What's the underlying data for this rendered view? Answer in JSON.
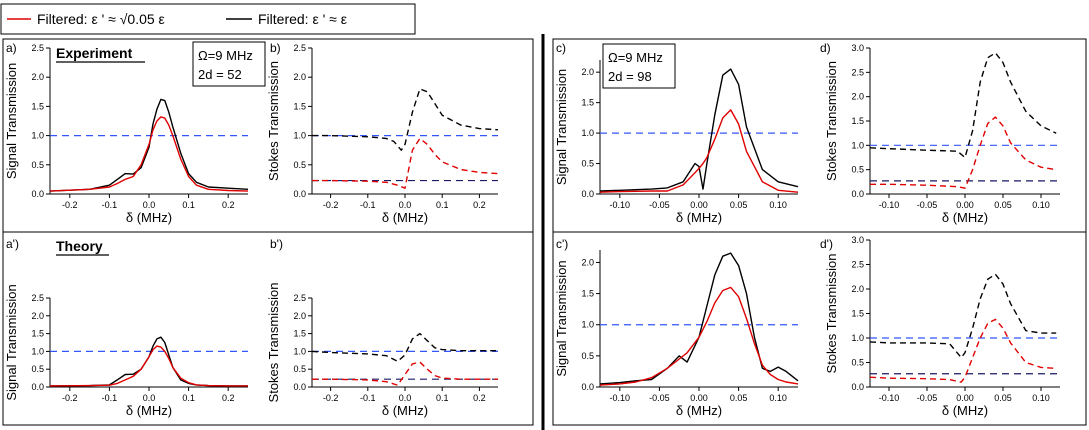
{
  "legend": {
    "items": [
      {
        "label": "Filtered: ε ' ≈ √0.05 ε",
        "color": "#e00000"
      },
      {
        "label": "Filtered: ε ' ≈ ε",
        "color": "#000000"
      }
    ]
  },
  "row_labels": {
    "experiment": "Experiment",
    "theory": "Theory"
  },
  "params": {
    "left": {
      "omega": "Ω=9 MHz",
      "two_d": "2d = 52"
    },
    "right": {
      "omega": "Ω=9 MHz",
      "two_d": "2d = 98"
    }
  },
  "colors": {
    "red": "#e00000",
    "black": "#000000",
    "blue_ref": "#3355ff",
    "navy_ref": "#1a1a66"
  },
  "chart_data": [
    {
      "id": "a",
      "panel_label": "a)",
      "type": "line",
      "xlabel": "δ (MHz)",
      "ylabel": "Signal Transmission",
      "xlim": [
        -0.25,
        0.25
      ],
      "ylim": [
        0,
        2.5
      ],
      "xticks": [
        -0.2,
        -0.1,
        0.0,
        0.1,
        0.2
      ],
      "xticklabels": [
        "-0.2",
        "-0.1",
        "0.0",
        "0.1",
        "0.2"
      ],
      "yticks": [
        0,
        0.5,
        1.0,
        1.5,
        2.0,
        2.5
      ],
      "yticklabels": [
        "0.0",
        "0.5",
        "1.0",
        "1.5",
        "2.0",
        "2.5"
      ],
      "reference_lines": [
        {
          "y": 1.0,
          "color": "blue"
        }
      ],
      "series": [
        {
          "color": "black",
          "style": "solid",
          "x": [
            -0.25,
            -0.15,
            -0.1,
            -0.08,
            -0.06,
            -0.04,
            -0.02,
            0.0,
            0.01,
            0.02,
            0.03,
            0.04,
            0.05,
            0.06,
            0.08,
            0.1,
            0.12,
            0.15,
            0.2,
            0.25
          ],
          "y": [
            0.05,
            0.08,
            0.15,
            0.25,
            0.35,
            0.34,
            0.45,
            0.8,
            1.2,
            1.45,
            1.62,
            1.6,
            1.4,
            1.15,
            0.7,
            0.35,
            0.2,
            0.12,
            0.1,
            0.08
          ]
        },
        {
          "color": "red",
          "style": "solid",
          "x": [
            -0.25,
            -0.15,
            -0.1,
            -0.08,
            -0.06,
            -0.04,
            -0.02,
            0.0,
            0.01,
            0.02,
            0.03,
            0.04,
            0.05,
            0.06,
            0.08,
            0.1,
            0.12,
            0.15,
            0.2,
            0.25
          ],
          "y": [
            0.05,
            0.08,
            0.12,
            0.18,
            0.25,
            0.3,
            0.5,
            0.85,
            1.1,
            1.25,
            1.32,
            1.3,
            1.18,
            1.0,
            0.6,
            0.3,
            0.15,
            0.08,
            0.06,
            0.05
          ]
        }
      ]
    },
    {
      "id": "b",
      "panel_label": "b)",
      "type": "line",
      "xlabel": "δ (MHz)",
      "ylabel": "Stokes Transmission",
      "xlim": [
        -0.25,
        0.25
      ],
      "ylim": [
        0,
        2.5
      ],
      "xticks": [
        -0.2,
        -0.1,
        0.0,
        0.1,
        0.2
      ],
      "xticklabels": [
        "-0.2",
        "-0.1",
        "0.0",
        "0.1",
        "0.2"
      ],
      "yticks": [
        0,
        0.5,
        1.0,
        1.5,
        2.0,
        2.5
      ],
      "yticklabels": [
        "0.0",
        "0.5",
        "1.0",
        "1.5",
        "2.0",
        "2.5"
      ],
      "reference_lines": [
        {
          "y": 1.0,
          "color": "blue"
        },
        {
          "y": 0.23,
          "color": "navy"
        }
      ],
      "series": [
        {
          "color": "black",
          "style": "dashed",
          "x": [
            -0.25,
            -0.2,
            -0.1,
            -0.05,
            -0.03,
            -0.01,
            0.0,
            0.02,
            0.04,
            0.06,
            0.08,
            0.1,
            0.15,
            0.2,
            0.25
          ],
          "y": [
            1.0,
            1.0,
            0.98,
            0.95,
            0.9,
            0.75,
            0.85,
            1.4,
            1.8,
            1.75,
            1.55,
            1.35,
            1.18,
            1.12,
            1.1
          ]
        },
        {
          "color": "red",
          "style": "dashed",
          "x": [
            -0.25,
            -0.2,
            -0.1,
            -0.05,
            -0.02,
            0.0,
            0.02,
            0.04,
            0.06,
            0.08,
            0.1,
            0.15,
            0.2,
            0.25
          ],
          "y": [
            0.23,
            0.23,
            0.22,
            0.2,
            0.15,
            0.1,
            0.75,
            0.95,
            0.85,
            0.68,
            0.55,
            0.42,
            0.37,
            0.35
          ]
        }
      ]
    },
    {
      "id": "a2",
      "panel_label": "a')",
      "type": "line",
      "xlabel": "δ (MHz)",
      "ylabel": "Signal Transmission",
      "xlim": [
        -0.25,
        0.25
      ],
      "ylim": [
        0,
        2.5
      ],
      "xticks": [
        -0.2,
        -0.1,
        0.0,
        0.1,
        0.2
      ],
      "xticklabels": [
        "-0.2",
        "-0.1",
        "0.0",
        "0.1",
        "0.2"
      ],
      "yticks": [
        0,
        0.5,
        1.0,
        1.5,
        2.0,
        2.5
      ],
      "yticklabels": [
        "0.0",
        "0.5",
        "1.0",
        "1.5",
        "2.0",
        "2.5"
      ],
      "reference_lines": [
        {
          "y": 1.0,
          "color": "blue"
        }
      ],
      "series": [
        {
          "color": "black",
          "style": "solid",
          "x": [
            -0.25,
            -0.15,
            -0.1,
            -0.08,
            -0.06,
            -0.04,
            -0.02,
            0.0,
            0.01,
            0.02,
            0.03,
            0.04,
            0.05,
            0.06,
            0.08,
            0.1,
            0.12,
            0.15,
            0.2,
            0.25
          ],
          "y": [
            0.03,
            0.04,
            0.06,
            0.2,
            0.35,
            0.36,
            0.5,
            0.85,
            1.15,
            1.35,
            1.4,
            1.25,
            0.9,
            0.55,
            0.2,
            0.1,
            0.06,
            0.04,
            0.03,
            0.03
          ]
        },
        {
          "color": "red",
          "style": "solid",
          "x": [
            -0.25,
            -0.15,
            -0.1,
            -0.08,
            -0.06,
            -0.04,
            -0.02,
            0.0,
            0.01,
            0.02,
            0.03,
            0.04,
            0.05,
            0.06,
            0.08,
            0.1,
            0.12,
            0.15,
            0.2,
            0.25
          ],
          "y": [
            0.03,
            0.04,
            0.05,
            0.1,
            0.2,
            0.3,
            0.5,
            0.85,
            1.05,
            1.15,
            1.12,
            1.0,
            0.8,
            0.55,
            0.25,
            0.12,
            0.06,
            0.04,
            0.03,
            0.03
          ]
        }
      ]
    },
    {
      "id": "b2",
      "panel_label": "b')",
      "type": "line",
      "xlabel": "δ (MHz)",
      "ylabel": "Stokes Transmission",
      "xlim": [
        -0.25,
        0.25
      ],
      "ylim": [
        0,
        2.5
      ],
      "xticks": [
        -0.2,
        -0.1,
        0.0,
        0.1,
        0.2
      ],
      "xticklabels": [
        "-0.2",
        "-0.1",
        "0.0",
        "0.1",
        "0.2"
      ],
      "yticks": [
        0,
        0.5,
        1.0,
        1.5,
        2.0,
        2.5
      ],
      "yticklabels": [
        "0.0",
        "0.5",
        "1.0",
        "1.5",
        "2.0",
        "2.5"
      ],
      "reference_lines": [
        {
          "y": 1.0,
          "color": "blue"
        },
        {
          "y": 0.22,
          "color": "navy"
        }
      ],
      "series": [
        {
          "color": "black",
          "style": "dashed",
          "x": [
            -0.25,
            -0.2,
            -0.1,
            -0.05,
            -0.02,
            0.0,
            0.02,
            0.04,
            0.06,
            0.08,
            0.1,
            0.15,
            0.2,
            0.25
          ],
          "y": [
            1.0,
            0.97,
            0.93,
            0.88,
            0.72,
            0.9,
            1.35,
            1.5,
            1.3,
            1.1,
            1.05,
            1.02,
            1.02,
            1.02
          ]
        },
        {
          "color": "red",
          "style": "dashed",
          "x": [
            -0.25,
            -0.2,
            -0.1,
            -0.05,
            -0.02,
            0.0,
            0.02,
            0.04,
            0.06,
            0.08,
            0.1,
            0.15,
            0.2,
            0.25
          ],
          "y": [
            0.22,
            0.22,
            0.2,
            0.15,
            0.05,
            0.35,
            0.65,
            0.7,
            0.5,
            0.32,
            0.25,
            0.22,
            0.22,
            0.22
          ]
        }
      ]
    },
    {
      "id": "c",
      "panel_label": "c)",
      "type": "line",
      "xlabel": "δ (MHz)",
      "ylabel": "Signal Transmission",
      "xlim": [
        -0.125,
        0.125
      ],
      "ylim": [
        0,
        2.2
      ],
      "xticks": [
        -0.1,
        -0.05,
        0.0,
        0.05,
        0.1
      ],
      "xticklabels": [
        "-0.10",
        "-0.05",
        "0.00",
        "0.05",
        "0.10"
      ],
      "yticks": [
        0,
        0.5,
        1.0,
        1.5,
        2.0
      ],
      "yticklabels": [
        "0.0",
        "0.5",
        "1.0",
        "1.5",
        "2.0"
      ],
      "reference_lines": [
        {
          "y": 1.0,
          "color": "blue"
        }
      ],
      "series": [
        {
          "color": "black",
          "style": "solid",
          "x": [
            -0.125,
            -0.1,
            -0.06,
            -0.04,
            -0.02,
            -0.005,
            0.0,
            0.005,
            0.01,
            0.02,
            0.03,
            0.04,
            0.05,
            0.06,
            0.08,
            0.1,
            0.125
          ],
          "y": [
            0.05,
            0.06,
            0.08,
            0.1,
            0.2,
            0.5,
            0.45,
            0.08,
            0.5,
            1.3,
            1.95,
            2.05,
            1.8,
            1.1,
            0.4,
            0.2,
            0.12
          ]
        },
        {
          "color": "red",
          "style": "solid",
          "x": [
            -0.125,
            -0.1,
            -0.06,
            -0.04,
            -0.02,
            -0.005,
            0.0,
            0.005,
            0.01,
            0.02,
            0.03,
            0.04,
            0.05,
            0.06,
            0.08,
            0.1,
            0.125
          ],
          "y": [
            0.03,
            0.04,
            0.05,
            0.05,
            0.15,
            0.35,
            0.42,
            0.5,
            0.6,
            0.9,
            1.25,
            1.38,
            1.15,
            0.7,
            0.2,
            0.06,
            0.03
          ]
        }
      ]
    },
    {
      "id": "d",
      "panel_label": "d)",
      "type": "line",
      "xlabel": "δ (MHz)",
      "ylabel": "Stokes Transmission",
      "xlim": [
        -0.125,
        0.125
      ],
      "ylim": [
        0,
        3.0
      ],
      "xticks": [
        -0.1,
        -0.05,
        0.0,
        0.05,
        0.1
      ],
      "xticklabels": [
        "-0.10",
        "-0.05",
        "0.00",
        "0.05",
        "0.10"
      ],
      "yticks": [
        0,
        0.5,
        1.0,
        1.5,
        2.0,
        2.5,
        3.0
      ],
      "yticklabels": [
        "0.0",
        "0.5",
        "1.0",
        "1.5",
        "2.0",
        "2.5",
        "3.0"
      ],
      "reference_lines": [
        {
          "y": 1.0,
          "color": "blue"
        },
        {
          "y": 0.27,
          "color": "navy"
        }
      ],
      "series": [
        {
          "color": "black",
          "style": "dashed",
          "x": [
            -0.125,
            -0.1,
            -0.05,
            -0.01,
            0.0,
            0.01,
            0.02,
            0.03,
            0.04,
            0.05,
            0.06,
            0.08,
            0.1,
            0.12
          ],
          "y": [
            0.95,
            0.93,
            0.9,
            0.88,
            0.75,
            1.3,
            2.3,
            2.8,
            2.9,
            2.7,
            2.3,
            1.7,
            1.4,
            1.25
          ]
        },
        {
          "color": "red",
          "style": "dashed",
          "x": [
            -0.125,
            -0.1,
            -0.05,
            -0.01,
            0.0,
            0.01,
            0.02,
            0.03,
            0.04,
            0.05,
            0.06,
            0.08,
            0.1,
            0.12
          ],
          "y": [
            0.2,
            0.2,
            0.18,
            0.15,
            0.12,
            0.5,
            1.0,
            1.45,
            1.58,
            1.4,
            1.05,
            0.7,
            0.55,
            0.5
          ]
        }
      ]
    },
    {
      "id": "c2",
      "panel_label": "c')",
      "type": "line",
      "xlabel": "δ (MHz)",
      "ylabel": "Signal Transmission",
      "xlim": [
        -0.125,
        0.125
      ],
      "ylim": [
        0,
        2.2
      ],
      "xticks": [
        -0.1,
        -0.05,
        0.0,
        0.05,
        0.1
      ],
      "xticklabels": [
        "-0.10",
        "-0.05",
        "0.00",
        "0.05",
        "0.10"
      ],
      "yticks": [
        0,
        0.5,
        1.0,
        1.5,
        2.0
      ],
      "yticklabels": [
        "0.0",
        "0.5",
        "1.0",
        "1.5",
        "2.0"
      ],
      "reference_lines": [
        {
          "y": 1.0,
          "color": "blue"
        }
      ],
      "series": [
        {
          "color": "black",
          "style": "solid",
          "x": [
            -0.125,
            -0.1,
            -0.08,
            -0.06,
            -0.04,
            -0.025,
            -0.015,
            0.0,
            0.01,
            0.02,
            0.03,
            0.04,
            0.05,
            0.06,
            0.07,
            0.08,
            0.09,
            0.1,
            0.11,
            0.125
          ],
          "y": [
            0.05,
            0.07,
            0.1,
            0.12,
            0.3,
            0.5,
            0.4,
            0.8,
            1.3,
            1.8,
            2.1,
            2.15,
            1.95,
            1.5,
            0.8,
            0.3,
            0.25,
            0.32,
            0.25,
            0.1
          ]
        },
        {
          "color": "red",
          "style": "solid",
          "x": [
            -0.125,
            -0.1,
            -0.08,
            -0.06,
            -0.04,
            -0.025,
            -0.015,
            0.0,
            0.01,
            0.02,
            0.03,
            0.04,
            0.05,
            0.06,
            0.07,
            0.08,
            0.09,
            0.1,
            0.11,
            0.125
          ],
          "y": [
            0.03,
            0.05,
            0.08,
            0.15,
            0.3,
            0.45,
            0.55,
            0.8,
            1.05,
            1.35,
            1.55,
            1.6,
            1.45,
            1.1,
            0.7,
            0.35,
            0.2,
            0.12,
            0.08,
            0.05
          ]
        }
      ]
    },
    {
      "id": "d2",
      "panel_label": "d')",
      "type": "line",
      "xlabel": "δ (MHz)",
      "ylabel": "Stokes Transmission",
      "xlim": [
        -0.125,
        0.125
      ],
      "ylim": [
        0,
        3.0
      ],
      "xticks": [
        -0.1,
        -0.05,
        0.0,
        0.05,
        0.1
      ],
      "xticklabels": [
        "-0.10",
        "-0.05",
        "0.00",
        "0.05",
        "0.10"
      ],
      "yticks": [
        0,
        0.5,
        1.0,
        1.5,
        2.0,
        2.5,
        3.0
      ],
      "yticklabels": [
        "0.0",
        "0.5",
        "1.0",
        "1.5",
        "2.0",
        "2.5",
        "3.0"
      ],
      "reference_lines": [
        {
          "y": 1.0,
          "color": "blue"
        },
        {
          "y": 0.27,
          "color": "navy"
        }
      ],
      "series": [
        {
          "color": "black",
          "style": "dashed",
          "x": [
            -0.125,
            -0.1,
            -0.05,
            -0.02,
            -0.005,
            0.0,
            0.01,
            0.02,
            0.03,
            0.04,
            0.05,
            0.06,
            0.08,
            0.1,
            0.12
          ],
          "y": [
            0.92,
            0.9,
            0.9,
            0.88,
            0.6,
            0.7,
            1.2,
            1.8,
            2.2,
            2.3,
            2.1,
            1.7,
            1.15,
            1.1,
            1.1
          ]
        },
        {
          "color": "red",
          "style": "dashed",
          "x": [
            -0.125,
            -0.1,
            -0.05,
            -0.02,
            -0.005,
            0.0,
            0.01,
            0.02,
            0.03,
            0.04,
            0.05,
            0.06,
            0.08,
            0.1,
            0.12
          ],
          "y": [
            0.2,
            0.18,
            0.17,
            0.15,
            0.1,
            0.2,
            0.6,
            1.0,
            1.3,
            1.38,
            1.2,
            0.9,
            0.5,
            0.4,
            0.38
          ]
        }
      ]
    }
  ]
}
